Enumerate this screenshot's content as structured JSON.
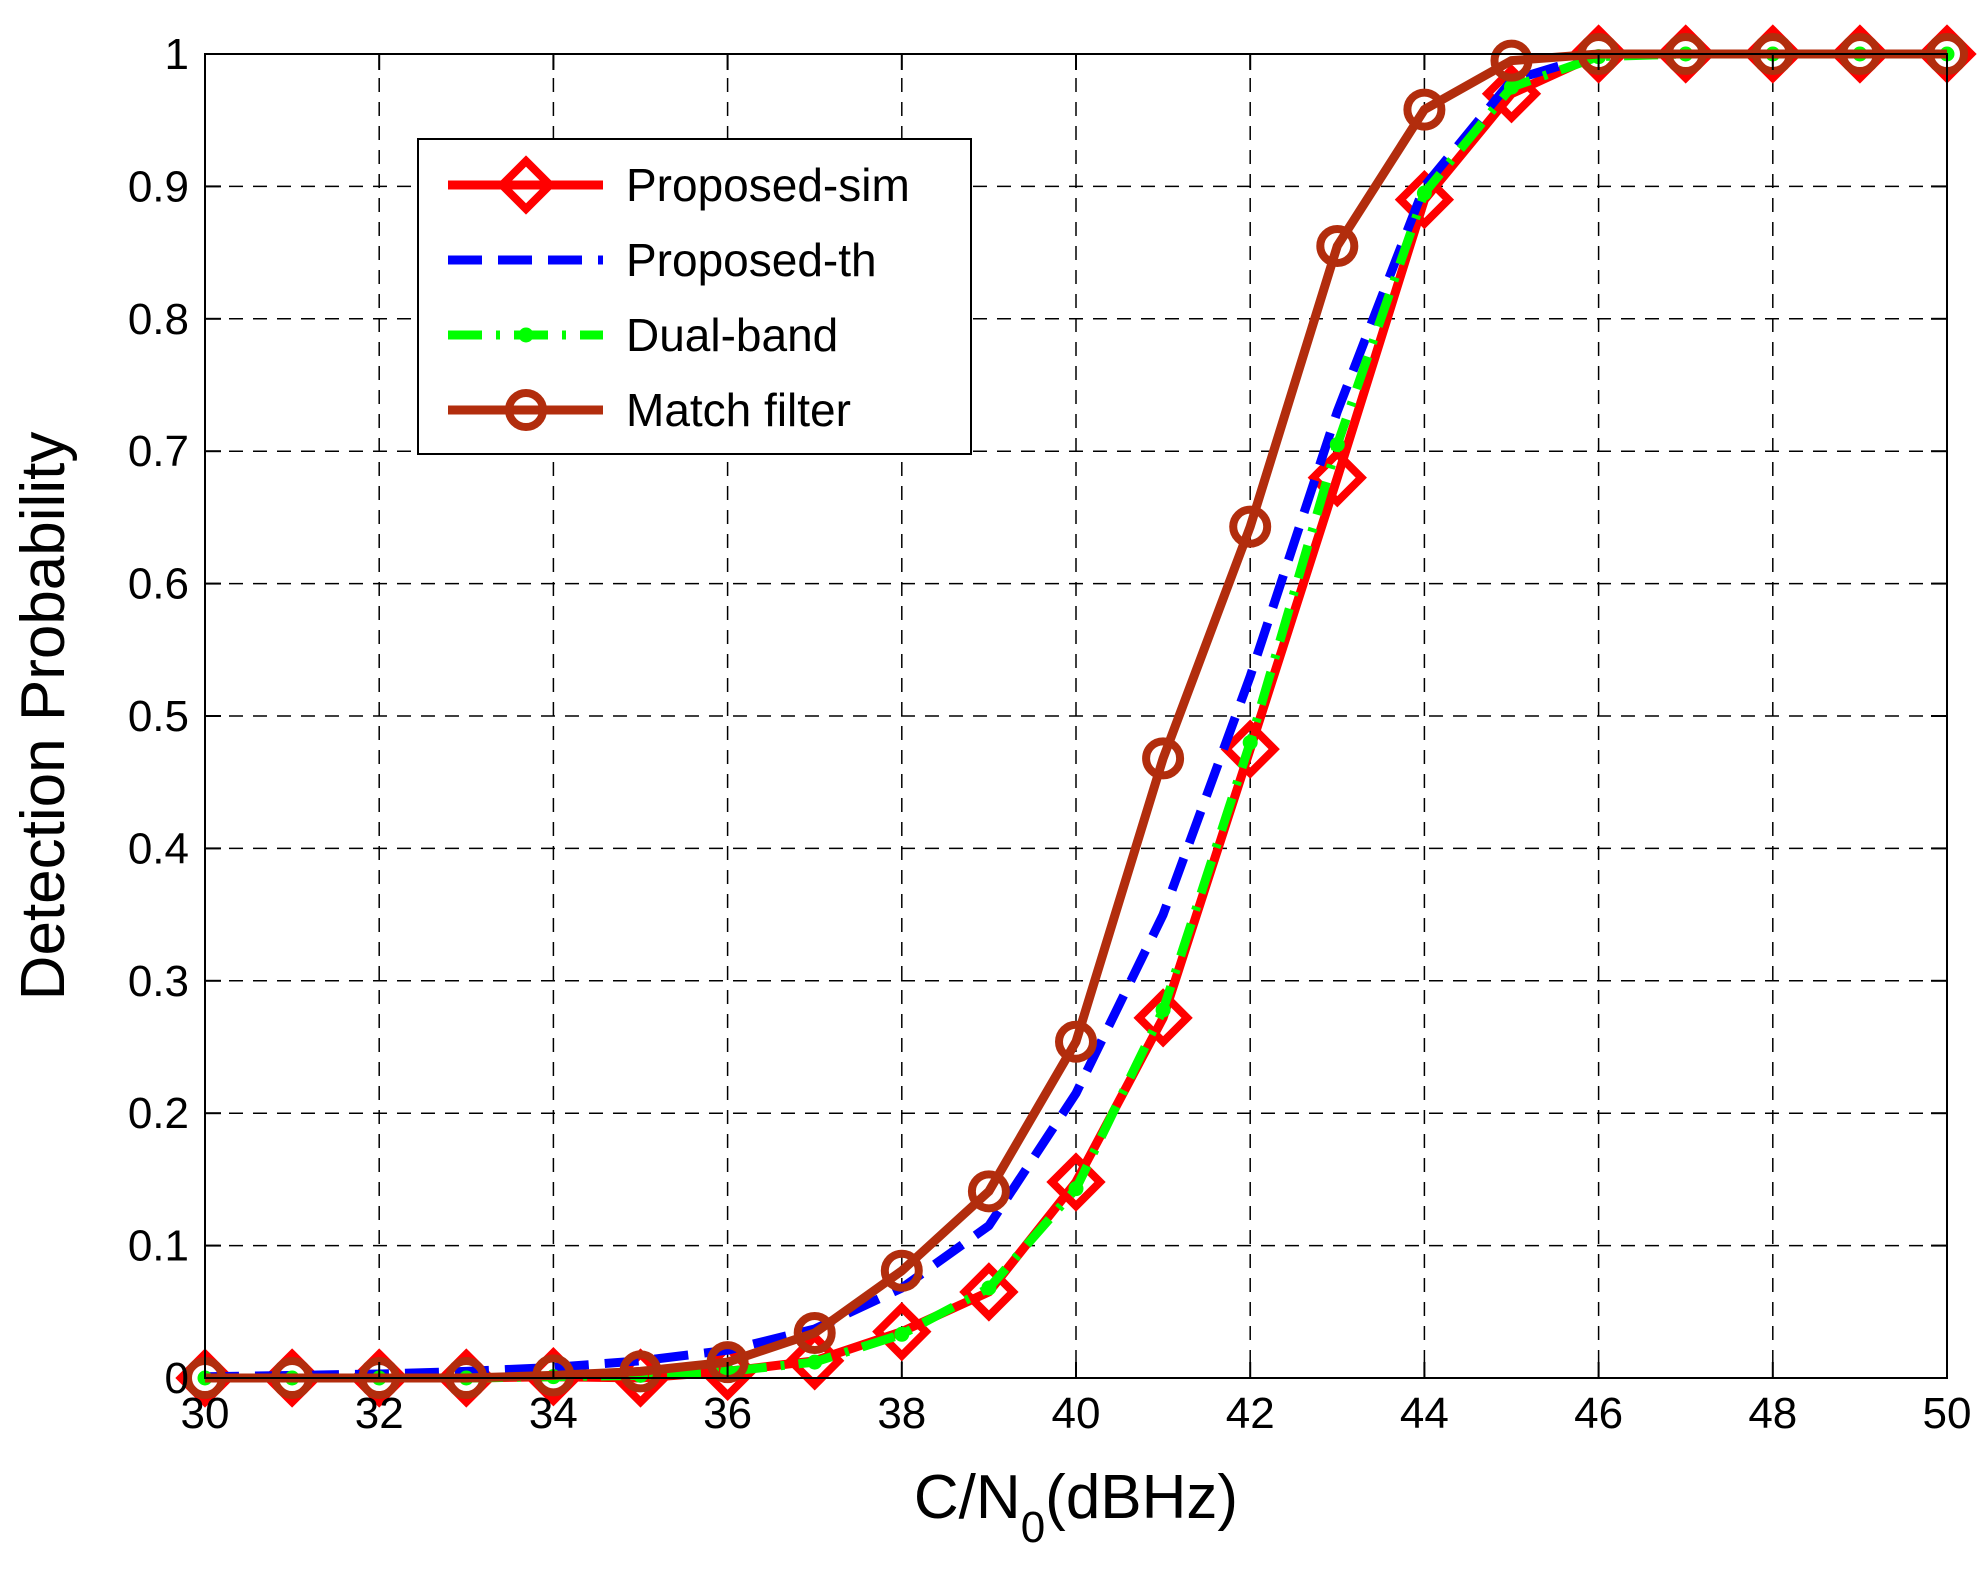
{
  "chart_data": {
    "type": "line",
    "title": "",
    "xlabel": "C/N",
    "xlabel_subscript": "0",
    "xlabel_suffix": "(dBHz)",
    "ylabel": "Detection Probability",
    "xlim": [
      30,
      50
    ],
    "ylim": [
      0,
      1
    ],
    "xticks": [
      30,
      32,
      34,
      36,
      38,
      40,
      42,
      44,
      46,
      48,
      50
    ],
    "xtick_labels": [
      "30",
      "32",
      "34",
      "36",
      "38",
      "40",
      "42",
      "44",
      "46",
      "48",
      "50"
    ],
    "yticks": [
      0,
      0.1,
      0.2,
      0.3,
      0.4,
      0.5,
      0.6,
      0.7,
      0.8,
      0.9,
      1
    ],
    "ytick_labels": [
      "0",
      "0.1",
      "0.2",
      "0.3",
      "0.4",
      "0.5",
      "0.6",
      "0.7",
      "0.8",
      "0.9",
      "1"
    ],
    "grid": true,
    "legend_position": "top-left",
    "x": [
      30,
      31,
      32,
      33,
      34,
      35,
      36,
      37,
      38,
      39,
      40,
      41,
      42,
      43,
      44,
      45,
      46,
      47,
      48,
      49,
      50
    ],
    "series": [
      {
        "name": "Proposed-sim",
        "color": "#ff0000",
        "line_style": "solid",
        "marker": "diamond",
        "values": [
          0.0,
          0.0,
          0.0,
          0.0,
          0.001,
          0.0,
          0.005,
          0.013,
          0.035,
          0.065,
          0.148,
          0.272,
          0.475,
          0.68,
          0.89,
          0.97,
          1.0,
          1.0,
          1.0,
          1.0,
          1.0
        ]
      },
      {
        "name": "Proposed-th",
        "color": "#0000ff",
        "line_style": "dashed",
        "marker": "none",
        "values": [
          0.001,
          0.002,
          0.003,
          0.005,
          0.008,
          0.013,
          0.021,
          0.037,
          0.068,
          0.115,
          0.215,
          0.35,
          0.53,
          0.73,
          0.9,
          0.98,
          1.0,
          1.0,
          1.0,
          1.0,
          1.0
        ]
      },
      {
        "name": "Dual-band",
        "color": "#00ff00",
        "line_style": "dash-dot",
        "marker": "dot",
        "values": [
          0.0,
          0.0,
          0.0,
          0.0,
          0.001,
          0.002,
          0.005,
          0.012,
          0.033,
          0.068,
          0.143,
          0.278,
          0.48,
          0.705,
          0.895,
          0.975,
          0.998,
          1.0,
          1.0,
          1.0,
          1.0
        ]
      },
      {
        "name": "Match filter",
        "color": "#b22d0d",
        "line_style": "solid",
        "marker": "circle",
        "values": [
          0.0,
          0.0,
          0.0,
          0.0,
          0.002,
          0.005,
          0.012,
          0.034,
          0.081,
          0.141,
          0.254,
          0.468,
          0.643,
          0.855,
          0.958,
          0.995,
          1.0,
          1.0,
          1.0,
          1.0,
          1.0
        ]
      }
    ]
  }
}
